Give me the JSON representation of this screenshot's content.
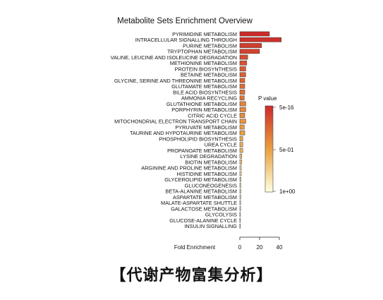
{
  "chart_data": {
    "type": "bar",
    "orientation": "horizontal",
    "title": "Metabolite Sets Enrichment Overview",
    "xlabel": "Fold Enrichment",
    "ylabel": "",
    "xlim": [
      0,
      45
    ],
    "xticks": [
      "0",
      "20",
      "40"
    ],
    "categories": [
      "PYRIMIDINE METABOLISM",
      "INTRACELLULAR SIGNALLING THROUGH",
      "PURINE METABOLISM",
      "TRYPTOPHAN METABOLISM",
      "VALINE, LEUCINE AND ISOLEUCINE DEGRADATION",
      "METHIONINE METABOLISM",
      "PROTEIN BIOSYNTHESIS",
      "BETAINE METABOLISM",
      "GLYCINE, SERINE AND THREONINE METABOLISM",
      "GLUTAMATE METABOLISM",
      "BILE ACID BIOSYNTHESIS",
      "AMMONIA RECYCLING",
      "GLUTATHIONE METABOLISM",
      "PORPHYRIN METABOLISM",
      "CITRIC ACID CYCLE",
      "MITOCHONDRIAL ELECTRON TRANSPORT CHAIN",
      "PYRUVATE METABOLISM",
      "TAURINE AND HYPOTAURINE METABOLISM",
      "PHOSPHOLIPID BIOSYNTHESIS",
      "UREA CYCLE",
      "PROPANOATE METABOLISM",
      "LYSINE DEGRADATION",
      "BIOTIN METABOLISM",
      "ARGININE AND PROLINE METABOLISM",
      "HISTIDINE METABOLISM",
      "GLYCEROLIPID METABOLISM",
      "GLUCONEOGENESIS",
      "BETA-ALANINE METABOLISM",
      "ASPARTATE METABOLISM",
      "MALATE-ASPARTATE SHUTTLE",
      "GALACTOSE METABOLISM",
      "GLYCOLYSIS",
      "GLUCOSE-ALANINE CYCLE",
      "INSULIN SIGNALLING"
    ],
    "values": [
      30,
      42,
      22,
      20,
      8,
      7,
      6,
      6,
      5,
      5,
      5,
      4.5,
      6,
      6,
      5,
      6,
      4.5,
      5,
      3,
      3,
      3,
      2,
      2,
      1.5,
      1.5,
      1.2,
      1,
      1,
      1,
      0.8,
      0.8,
      0.6,
      0.5,
      0.5
    ],
    "pvalue_shade": [
      1.0,
      0.97,
      0.92,
      0.9,
      0.85,
      0.82,
      0.8,
      0.78,
      0.75,
      0.72,
      0.7,
      0.68,
      0.62,
      0.6,
      0.58,
      0.55,
      0.52,
      0.5,
      0.45,
      0.42,
      0.4,
      0.32,
      0.3,
      0.22,
      0.2,
      0.18,
      0.14,
      0.12,
      0.1,
      0.08,
      0.06,
      0.05,
      0.04,
      0.03
    ],
    "legend": {
      "title": "P value",
      "labels": [
        "5e-16",
        "5e-01",
        "1e+00"
      ],
      "placement": "right",
      "color_high": "#cc2a2a",
      "color_mid": "#e9a040",
      "color_low": "#ffffe0"
    }
  },
  "caption": "【代谢产物富集分析】"
}
